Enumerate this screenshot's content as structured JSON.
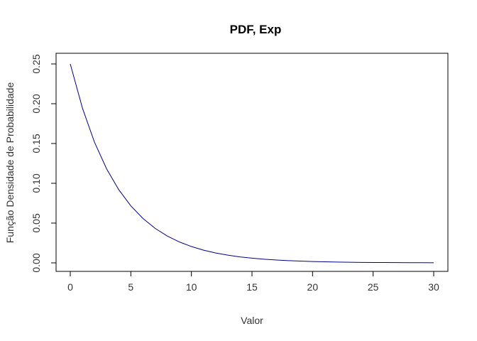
{
  "chart_data": {
    "type": "line",
    "title": "PDF, Exp",
    "xlabel": "Valor",
    "ylabel": "Função Densidade de Probabilidade",
    "xlim": [
      0,
      30
    ],
    "ylim": [
      0,
      0.25
    ],
    "grid": false,
    "x_ticks": [
      0,
      5,
      10,
      15,
      20,
      25,
      30
    ],
    "x_tick_labels": [
      "0",
      "5",
      "10",
      "15",
      "20",
      "25",
      "30"
    ],
    "y_ticks": [
      0.0,
      0.05,
      0.1,
      0.15,
      0.2,
      0.25
    ],
    "y_tick_labels": [
      "0.00",
      "0.05",
      "0.10",
      "0.15",
      "0.20",
      "0.25"
    ],
    "series": [
      {
        "color": "#00008b",
        "x": [
          0,
          1,
          2,
          3,
          4,
          5,
          6,
          7,
          8,
          9,
          10,
          11,
          12,
          13,
          14,
          15,
          16,
          17,
          18,
          19,
          20,
          21,
          22,
          23,
          24,
          25,
          26,
          27,
          28,
          29,
          30
        ],
        "values": [
          0.25,
          0.1947,
          0.1516,
          0.1181,
          0.092,
          0.0716,
          0.0558,
          0.0434,
          0.0338,
          0.0263,
          0.0205,
          0.016,
          0.0124,
          0.0097,
          0.0075,
          0.0059,
          0.0046,
          0.0036,
          0.0028,
          0.0022,
          0.0017,
          0.0013,
          0.001,
          0.0008,
          0.0006,
          0.0005,
          0.0004,
          0.0003,
          0.0002,
          0.0002,
          0.0001
        ]
      }
    ]
  }
}
